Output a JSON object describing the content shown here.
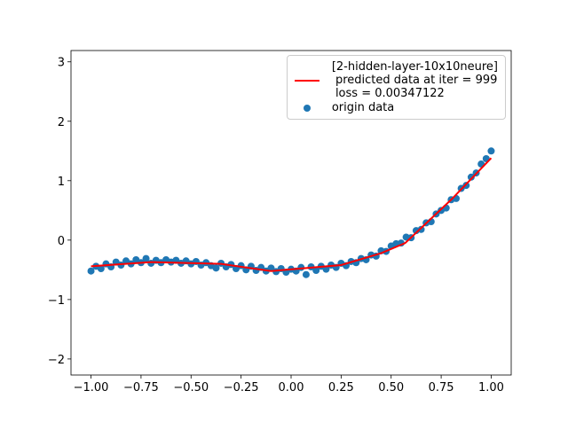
{
  "chart_data": {
    "type": "scatter-line",
    "xlim": [
      -1.1,
      1.1
    ],
    "ylim": [
      -2.27,
      3.19
    ],
    "xticks": [
      {
        "value": -1,
        "label": "−1.00"
      },
      {
        "value": -0.75,
        "label": "−0.75"
      },
      {
        "value": -0.5,
        "label": "−0.50"
      },
      {
        "value": -0.25,
        "label": "−0.25"
      },
      {
        "value": 0,
        "label": "0.00"
      },
      {
        "value": 0.25,
        "label": "0.25"
      },
      {
        "value": 0.5,
        "label": "0.50"
      },
      {
        "value": 0.75,
        "label": "0.75"
      },
      {
        "value": 1,
        "label": "1.00"
      }
    ],
    "yticks": [
      {
        "value": -2,
        "label": "−2"
      },
      {
        "value": -1,
        "label": "−1"
      },
      0,
      1,
      2,
      3
    ],
    "legend": "upper right",
    "series": [
      {
        "name": "[2-hidden-layer-10x10neure]\n predicted data at iter = 999\n loss = 0.00347122",
        "type": "line",
        "color": "#ff0000",
        "x": [
          -1.0,
          -0.7,
          -0.35,
          -0.1,
          0.25,
          0.45,
          0.57,
          0.8,
          1.0
        ],
        "values": [
          -0.44,
          -0.37,
          -0.4,
          -0.52,
          -0.42,
          -0.22,
          -0.05,
          0.68,
          1.38
        ]
      },
      {
        "name": "origin data",
        "type": "scatter",
        "color": "#1f77b4",
        "x": [
          -1.0,
          -0.975,
          -0.95,
          -0.925,
          -0.9,
          -0.875,
          -0.85,
          -0.825,
          -0.8,
          -0.775,
          -0.75,
          -0.725,
          -0.7,
          -0.675,
          -0.65,
          -0.625,
          -0.6,
          -0.575,
          -0.55,
          -0.525,
          -0.5,
          -0.475,
          -0.45,
          -0.425,
          -0.4,
          -0.375,
          -0.35,
          -0.325,
          -0.3,
          -0.275,
          -0.25,
          -0.225,
          -0.2,
          -0.175,
          -0.15,
          -0.125,
          -0.1,
          -0.075,
          -0.05,
          -0.025,
          0,
          0.025,
          0.05,
          0.075,
          0.1,
          0.125,
          0.15,
          0.175,
          0.2,
          0.225,
          0.25,
          0.275,
          0.3,
          0.325,
          0.35,
          0.375,
          0.4,
          0.425,
          0.45,
          0.475,
          0.5,
          0.525,
          0.55,
          0.575,
          0.6,
          0.625,
          0.65,
          0.675,
          0.7,
          0.725,
          0.75,
          0.775,
          0.8,
          0.825,
          0.85,
          0.875,
          0.9,
          0.925,
          0.95,
          0.975,
          1.0
        ],
        "values": [
          -0.52,
          -0.44,
          -0.48,
          -0.4,
          -0.45,
          -0.37,
          -0.42,
          -0.35,
          -0.4,
          -0.33,
          -0.38,
          -0.31,
          -0.39,
          -0.34,
          -0.38,
          -0.33,
          -0.37,
          -0.34,
          -0.39,
          -0.35,
          -0.4,
          -0.36,
          -0.42,
          -0.38,
          -0.43,
          -0.47,
          -0.39,
          -0.45,
          -0.41,
          -0.48,
          -0.43,
          -0.5,
          -0.44,
          -0.51,
          -0.46,
          -0.52,
          -0.47,
          -0.53,
          -0.48,
          -0.54,
          -0.49,
          -0.52,
          -0.46,
          -0.58,
          -0.45,
          -0.51,
          -0.44,
          -0.49,
          -0.42,
          -0.46,
          -0.39,
          -0.43,
          -0.36,
          -0.38,
          -0.31,
          -0.33,
          -0.25,
          -0.27,
          -0.18,
          -0.19,
          -0.1,
          -0.06,
          -0.05,
          0.05,
          0.04,
          0.16,
          0.18,
          0.29,
          0.31,
          0.44,
          0.5,
          0.54,
          0.68,
          0.7,
          0.87,
          0.92,
          1.06,
          1.13,
          1.28,
          1.37,
          1.5
        ]
      }
    ]
  }
}
